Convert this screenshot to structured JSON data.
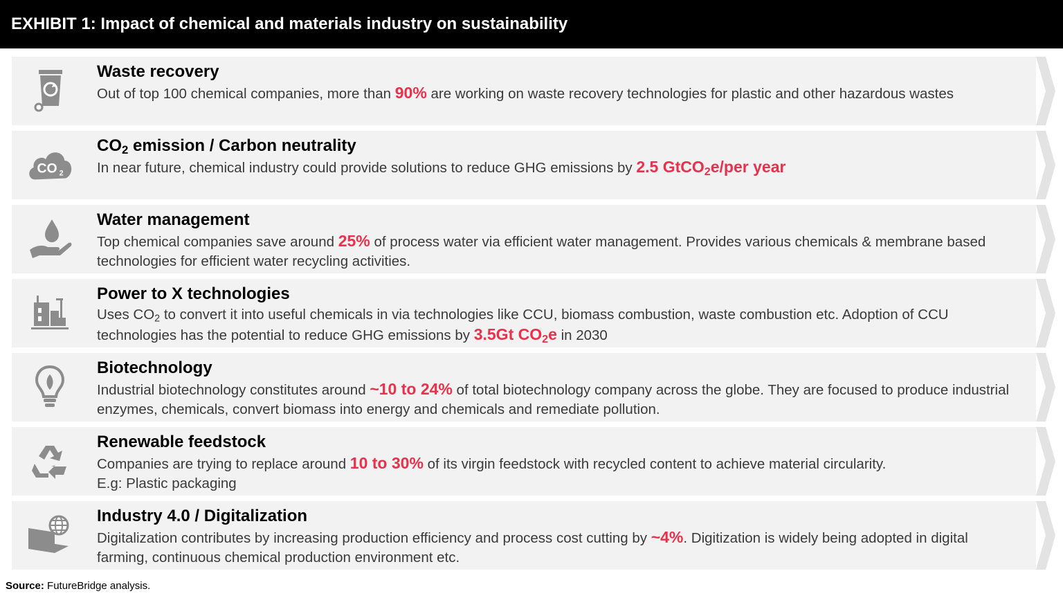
{
  "header": {
    "title": "EXHIBIT 1: Impact of chemical and materials industry on sustainability"
  },
  "rows": [
    {
      "icon": "waste-bin-icon",
      "title": "Waste recovery",
      "body": [
        {
          "t": "Out of top 100 chemical companies, more than "
        },
        {
          "t": "90%",
          "hl": true
        },
        {
          "t": " are working on waste recovery technologies for plastic and other hazardous wastes"
        }
      ]
    },
    {
      "icon": "co2-cloud-icon",
      "title_parts": [
        {
          "t": "CO"
        },
        {
          "t": "2",
          "sub": true
        },
        {
          "t": " emission / Carbon neutrality"
        }
      ],
      "body": [
        {
          "t": "In near future, chemical industry could provide solutions to reduce GHG emissions by "
        },
        {
          "t": "2.5 GtCO",
          "hl": true
        },
        {
          "t": "2",
          "hl": true,
          "sub": true
        },
        {
          "t": "e/per year",
          "hl": true
        }
      ]
    },
    {
      "icon": "water-hand-icon",
      "title": "Water management",
      "body": [
        {
          "t": "Top chemical companies save around "
        },
        {
          "t": "25%",
          "hl": true
        },
        {
          "t": " of process water via efficient water management. Provides various chemicals & membrane based technologies for efficient water recycling activities."
        }
      ]
    },
    {
      "icon": "factory-icon",
      "title": "Power to X technologies",
      "body": [
        {
          "t": "Uses CO"
        },
        {
          "t": "2",
          "sub": true
        },
        {
          "t": " to convert it into useful chemicals in via technologies like CCU, biomass combustion, waste combustion etc. Adoption of CCU technologies has the potential to reduce GHG emissions by "
        },
        {
          "t": "3.5Gt CO",
          "hl": true
        },
        {
          "t": "2",
          "hl": true,
          "sub": true
        },
        {
          "t": "e",
          "hl": true
        },
        {
          "t": " in 2030"
        }
      ]
    },
    {
      "icon": "bulb-leaf-icon",
      "title": "Biotechnology",
      "body": [
        {
          "t": "Industrial biotechnology constitutes around "
        },
        {
          "t": "~10 to 24%",
          "hl": true
        },
        {
          "t": " of total biotechnology company across the globe. They are focused to produce industrial enzymes, chemicals, convert biomass into energy and chemicals and remediate pollution."
        }
      ]
    },
    {
      "icon": "recycle-icon",
      "title": "Renewable feedstock",
      "body": [
        {
          "t": "Companies are trying to replace around "
        },
        {
          "t": "10 to 30%",
          "hl": true
        },
        {
          "t": " of its virgin feedstock with recycled content to achieve material circularity."
        },
        {
          "br": true
        },
        {
          "t": "E.g: Plastic packaging"
        }
      ]
    },
    {
      "icon": "laptop-globe-icon",
      "title": "Industry 4.0 / Digitalization",
      "body": [
        {
          "t": "Digitalization contributes by increasing production efficiency and process cost cutting by "
        },
        {
          "t": "~4%",
          "hl": true
        },
        {
          "t": ". Digitization is widely being adopted in digital farming, continuous chemical production environment etc."
        }
      ]
    }
  ],
  "source": {
    "label": "Source:",
    "text": " FutureBridge analysis."
  },
  "colors": {
    "highlight": "#e8314a",
    "row_bg": "#f2f2f2",
    "chevron": "#e3e3e3",
    "icon": "#8c8c8c"
  }
}
